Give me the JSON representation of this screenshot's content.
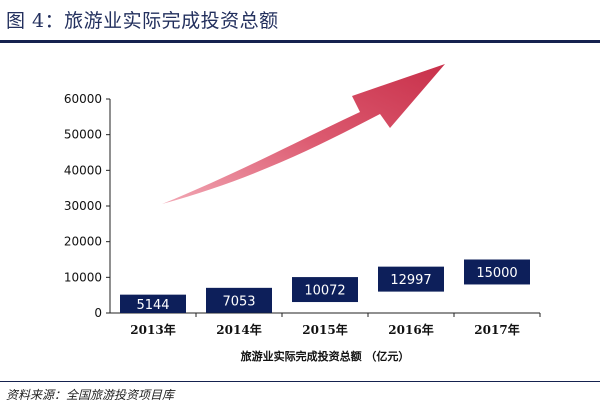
{
  "header": {
    "title": "图 4：旅游业实际完成投资总额"
  },
  "footer": {
    "source": "资料来源：全国旅游投资项目库"
  },
  "colors": {
    "bar": "#0d1f5a",
    "arrow": "#c8384f",
    "rule": "#15224f"
  },
  "chart_data": {
    "type": "bar",
    "categories": [
      "2013年",
      "2014年",
      "2015年",
      "2016年",
      "2017年"
    ],
    "values": [
      5144,
      7053,
      10072,
      12997,
      15000
    ],
    "xlabel": "旅游业实际完成投资总额  （亿元）",
    "ylabel": "",
    "ylim": [
      0,
      60000
    ],
    "yticks": [
      0,
      10000,
      20000,
      30000,
      40000,
      50000,
      60000
    ],
    "grid": false,
    "annotation": "rising-arrow"
  }
}
